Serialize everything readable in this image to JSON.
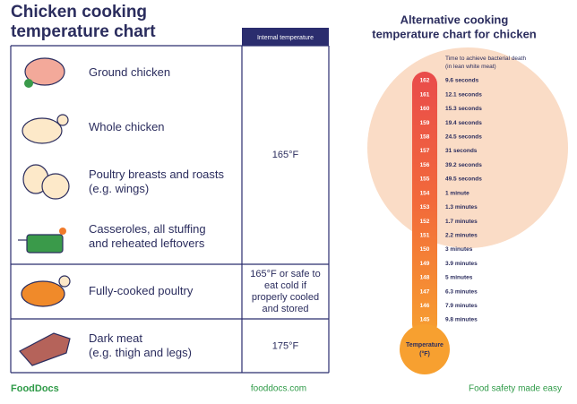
{
  "left": {
    "title_lines": [
      "Chicken cooking",
      "temperature chart"
    ],
    "column_header": "Internal temperature",
    "groups": [
      {
        "items": [
          {
            "lines": [
              "Ground chicken"
            ]
          },
          {
            "lines": [
              "Whole chicken"
            ]
          },
          {
            "lines": [
              "Poultry breasts and roasts",
              "(e.g. wings)"
            ]
          },
          {
            "lines": [
              "Casseroles, all stuffing",
              "and reheated leftovers"
            ]
          }
        ],
        "temperature_lines": [
          "165°F"
        ]
      },
      {
        "items": [
          {
            "lines": [
              "Fully-cooked poultry"
            ]
          }
        ],
        "temperature_lines": [
          "165°F or safe to",
          "eat cold if",
          "properly cooled",
          "and stored"
        ]
      },
      {
        "items": [
          {
            "lines": [
              "Dark meat",
              "(e.g. thigh and legs)"
            ]
          }
        ],
        "temperature_lines": [
          "175°F"
        ]
      }
    ]
  },
  "right": {
    "title_lines": [
      "Alternative cooking",
      "temperature chart for chicken"
    ],
    "caption_lines": [
      "Time to achieve bacterial death",
      "(in lean white meat)"
    ],
    "rows": [
      {
        "temperature": "162",
        "time": "9.6 seconds"
      },
      {
        "temperature": "161",
        "time": "12.1 seconds"
      },
      {
        "temperature": "160",
        "time": "15.3 seconds"
      },
      {
        "temperature": "159",
        "time": "19.4 seconds"
      },
      {
        "temperature": "158",
        "time": "24.5 seconds"
      },
      {
        "temperature": "157",
        "time": "31 seconds"
      },
      {
        "temperature": "156",
        "time": "39.2 seconds"
      },
      {
        "temperature": "155",
        "time": "49.5 seconds"
      },
      {
        "temperature": "154",
        "time": "1 minute"
      },
      {
        "temperature": "153",
        "time": "1.3 minutes"
      },
      {
        "temperature": "152",
        "time": "1.7 minutes"
      },
      {
        "temperature": "151",
        "time": "2.2 minutes"
      },
      {
        "temperature": "150",
        "time": "3 minutes"
      },
      {
        "temperature": "149",
        "time": "3.9 minutes"
      },
      {
        "temperature": "148",
        "time": "5 minutes"
      },
      {
        "temperature": "147",
        "time": "6.3 minutes"
      },
      {
        "temperature": "146",
        "time": "7.9 minutes"
      },
      {
        "temperature": "145",
        "time": "9.8 minutes"
      }
    ],
    "bulb_lines": [
      "Temperature",
      "(°F)"
    ]
  },
  "footer": {
    "brand": "FoodDocs",
    "site": "fooddocs.com",
    "slogan": "Food safety made easy"
  }
}
